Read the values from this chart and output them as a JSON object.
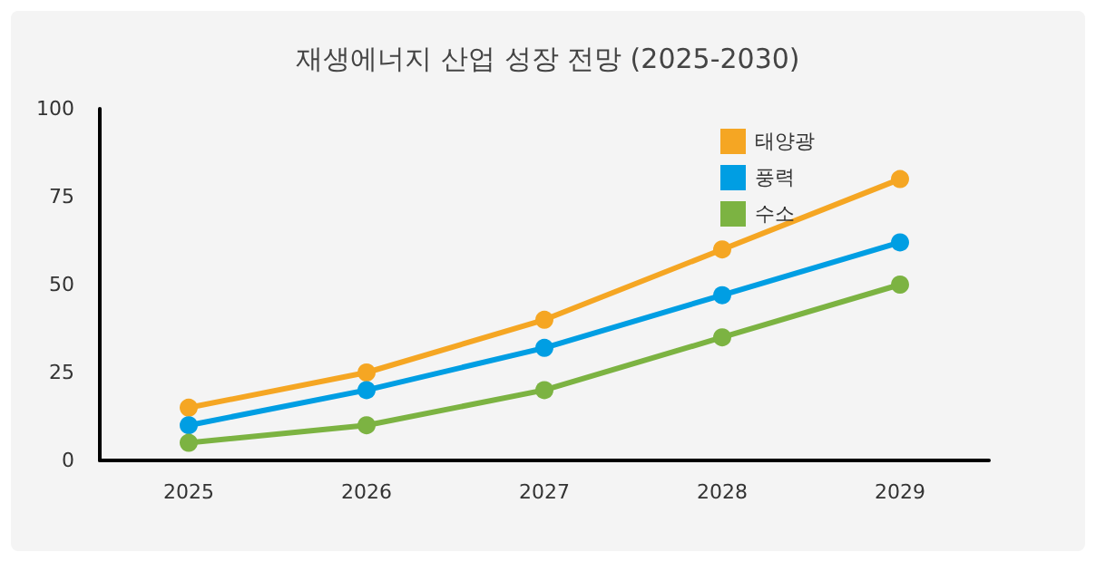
{
  "chart_data": {
    "type": "line",
    "title": "재생에너지 산업 성장 전망 (2025-2030)",
    "categories": [
      "2025",
      "2026",
      "2027",
      "2028",
      "2029"
    ],
    "series": [
      {
        "name": "태양광",
        "color": "#f5a623",
        "values": [
          15,
          25,
          40,
          60,
          80
        ]
      },
      {
        "name": "풍력",
        "color": "#009ee3",
        "values": [
          10,
          20,
          32,
          47,
          62
        ]
      },
      {
        "name": "수소",
        "color": "#7cb342",
        "values": [
          5,
          10,
          20,
          35,
          50
        ]
      }
    ],
    "ylim": [
      0,
      100
    ],
    "yticks": [
      0,
      25,
      50,
      75,
      100
    ],
    "grid": false,
    "legend": "top right",
    "marker": "circle",
    "line_style": "solid"
  }
}
